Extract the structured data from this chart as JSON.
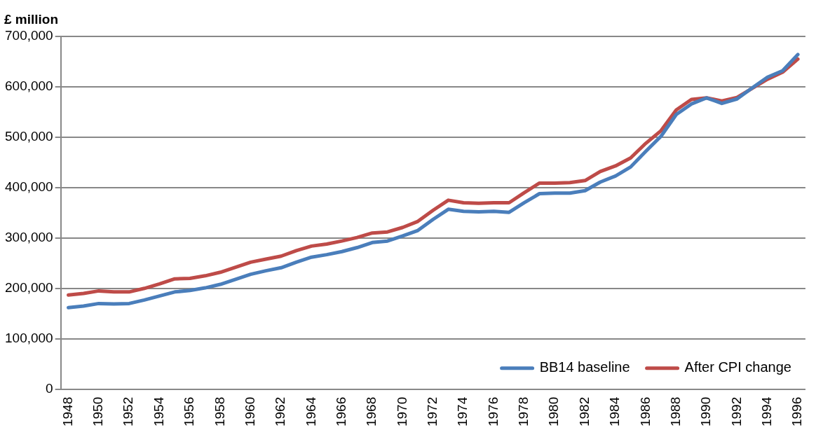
{
  "chart_data": {
    "type": "line",
    "ylabel": "£ million",
    "categories": [
      "1948",
      null,
      "1950",
      null,
      "1952",
      null,
      "1954",
      null,
      "1956",
      null,
      "1958",
      null,
      "1960",
      null,
      "1962",
      null,
      "1964",
      null,
      "1966",
      null,
      "1968",
      null,
      "1970",
      null,
      "1972",
      null,
      "1974",
      null,
      "1976",
      null,
      "1978",
      null,
      "1980",
      null,
      "1982",
      null,
      "1984",
      null,
      "1986",
      null,
      "1988",
      null,
      "1990",
      null,
      "1992",
      null,
      "1994",
      null,
      "1996"
    ],
    "series": [
      {
        "name": "BB14 baseline",
        "color": "#4a7ebb",
        "values": [
          162000,
          165000,
          170000,
          169000,
          170000,
          177000,
          185000,
          193000,
          196000,
          201000,
          208000,
          218000,
          228000,
          235000,
          241000,
          252000,
          262000,
          267000,
          273000,
          281000,
          291000,
          294000,
          304000,
          315000,
          337000,
          357000,
          353000,
          352000,
          353000,
          351000,
          370000,
          388000,
          389000,
          389000,
          394000,
          411000,
          423000,
          441000,
          472000,
          502000,
          545000,
          566000,
          578000,
          567000,
          576000,
          598000,
          619000,
          632000,
          664000
        ]
      },
      {
        "name": "After CPI change",
        "color": "#be4b48",
        "values": [
          187000,
          190000,
          195000,
          193000,
          193000,
          200000,
          209000,
          219000,
          220000,
          225000,
          232000,
          242000,
          252000,
          258000,
          264000,
          275000,
          284000,
          288000,
          294000,
          301000,
          310000,
          312000,
          321000,
          333000,
          355000,
          375000,
          370000,
          369000,
          370000,
          370000,
          390000,
          409000,
          409000,
          410000,
          414000,
          432000,
          443000,
          459000,
          488000,
          513000,
          554000,
          575000,
          578000,
          572000,
          579000,
          597000,
          615000,
          629000,
          655000
        ]
      }
    ],
    "ylim": [
      0,
      700000
    ],
    "yticks": [
      0,
      {
        "value": 100000,
        "label": "100,000"
      },
      {
        "value": 200000,
        "label": "200,000"
      },
      {
        "value": 300000,
        "label": "300,000"
      },
      {
        "value": 400000,
        "label": "400,000"
      },
      {
        "value": 500000,
        "label": "500,000"
      },
      {
        "value": 600000,
        "label": "600,000"
      },
      {
        "value": 700000,
        "label": "700,000"
      }
    ],
    "grid": "y",
    "legend": "bottom right",
    "marker": "none",
    "line_style": "solid"
  }
}
